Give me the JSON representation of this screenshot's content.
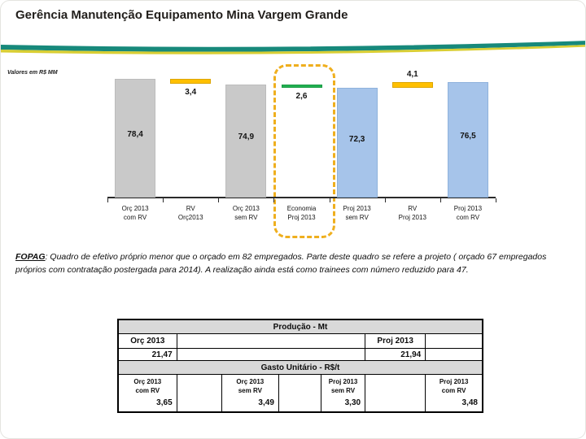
{
  "header": {
    "title": "Gerência Manutenção Equipamento Mina Vargem Grande"
  },
  "chart_data": {
    "type": "bar",
    "subtype": "waterfall",
    "title": "",
    "xlabel": "",
    "ylabel": "",
    "units_note": "Valores em R$ MM",
    "ylim": [
      0,
      85
    ],
    "grid": false,
    "legend": false,
    "y_axis_visible": false,
    "x_axis_line": true,
    "colors": {
      "gray": "#C9C9C9",
      "yellow": "#FFC000",
      "green": "#21B052",
      "blue": "#A6C4EA",
      "highlight_border": "#EFAF1E"
    },
    "categories": [
      "Orç 2013 com RV",
      "RV Orç2013",
      "Orç 2013 sem RV",
      "Economia Proj 2013",
      "Proj 2013 sem RV",
      "RV Proj 2013",
      "Proj 2013 com RV"
    ],
    "bars": [
      {
        "category_line1": "Orç 2013",
        "category_line2": "com RV",
        "value": 78.4,
        "display": "78,4",
        "base": 0,
        "top": 78.4,
        "color": "gray",
        "value_label_pos": "inside",
        "highlighted": false
      },
      {
        "category_line1": "RV",
        "category_line2": "Orç2013",
        "value": 3.4,
        "display": "3,4",
        "base": 75.0,
        "top": 78.4,
        "color": "yellow",
        "value_label_pos": "below",
        "highlighted": false
      },
      {
        "category_line1": "Orç 2013",
        "category_line2": "sem RV",
        "value": 74.9,
        "display": "74,9",
        "base": 0,
        "top": 74.9,
        "color": "gray",
        "value_label_pos": "inside",
        "highlighted": false
      },
      {
        "category_line1": "Economia",
        "category_line2": "Proj 2013",
        "value": 2.6,
        "display": "2,6",
        "base": 72.3,
        "top": 74.9,
        "color": "green",
        "value_label_pos": "below",
        "highlighted": true
      },
      {
        "category_line1": "Proj 2013",
        "category_line2": "sem RV",
        "value": 72.3,
        "display": "72,3",
        "base": 0,
        "top": 72.3,
        "color": "blue",
        "value_label_pos": "inside",
        "highlighted": false
      },
      {
        "category_line1": "RV",
        "category_line2": "Proj 2013",
        "value": 4.1,
        "display": "4,1",
        "base": 72.3,
        "top": 76.4,
        "color": "yellow",
        "value_label_pos": "above",
        "highlighted": false
      },
      {
        "category_line1": "Proj 2013",
        "category_line2": "com RV",
        "value": 76.5,
        "display": "76,5",
        "base": 0,
        "top": 76.5,
        "color": "blue",
        "value_label_pos": "inside",
        "highlighted": false
      }
    ]
  },
  "footnote": {
    "term": "FOPAG",
    "line1_rest": ": Quadro de efetivo próprio menor que o orçado em 82 empregados. Parte deste quadro se refere a projeto ( orçado 67 empregados",
    "line2": "próprios  com contratação postergada para 2014). A realização ainda está como trainees com número reduzido para 47."
  },
  "table": {
    "production": {
      "title": "Produção - Mt",
      "col1_header": "Orç 2013",
      "col1_value": "21,47",
      "col2_header": "Proj 2013",
      "col2_value": "21,94"
    },
    "gasto": {
      "title": "Gasto Unitário - R$/t",
      "cells": [
        {
          "line1": "Orç 2013",
          "line2": "com RV",
          "value": "3,65"
        },
        {
          "line1": "Orç 2013",
          "line2": "sem RV",
          "value": "3,49"
        },
        {
          "line1": "Proj 2013",
          "line2": "sem RV",
          "value": "3,30"
        },
        {
          "line1": "Proj 2013",
          "line2": "com RV",
          "value": "3,48"
        }
      ]
    }
  }
}
